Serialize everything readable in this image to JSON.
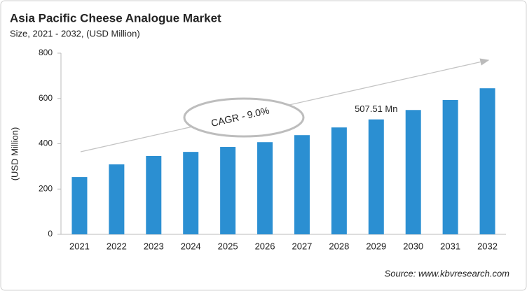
{
  "chart_data": {
    "type": "bar",
    "title": "Asia Pacific Cheese Analogue Market",
    "subtitle": "Size, 2021 - 2032, (USD Million)",
    "y_label": "(USD Million)",
    "categories": [
      "2021",
      "2022",
      "2023",
      "2024",
      "2025",
      "2026",
      "2027",
      "2028",
      "2029",
      "2030",
      "2031",
      "2032"
    ],
    "values": [
      253,
      309,
      346,
      364,
      386,
      407,
      438,
      472,
      507.51,
      549,
      593,
      645
    ],
    "value_labels": [
      null,
      null,
      null,
      null,
      null,
      null,
      null,
      null,
      "507.51 Mn",
      null,
      null,
      null
    ],
    "color": "#2b8fd2",
    "ylim": [
      0,
      800
    ],
    "yticks": [
      0,
      200,
      400,
      600,
      800
    ],
    "grid": false,
    "annotation": "CAGR - 9.0%",
    "source": "Source: www.kbvresearch.com"
  }
}
